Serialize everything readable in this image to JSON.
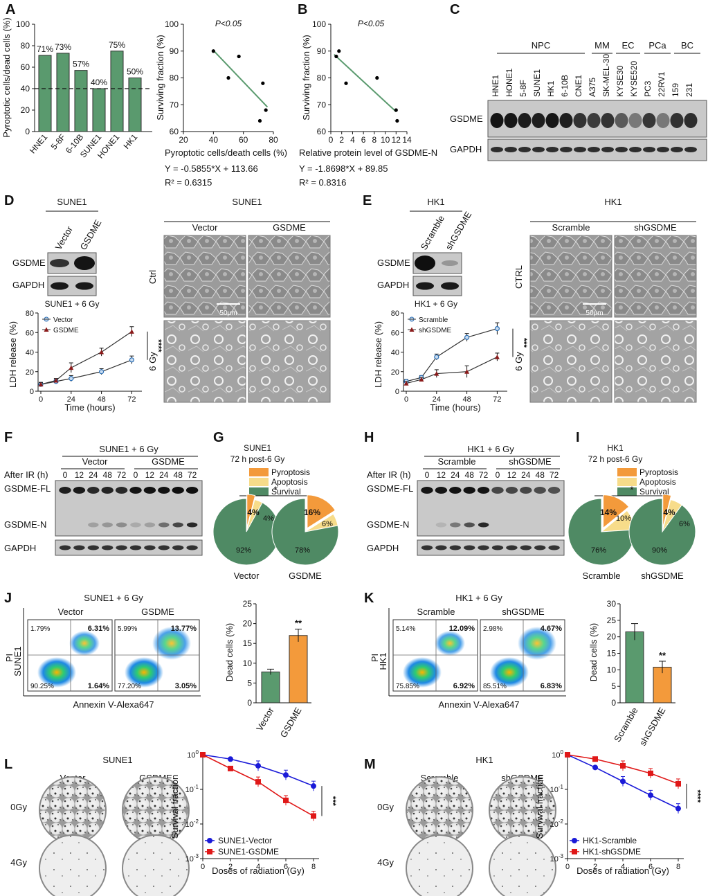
{
  "panels": {
    "A": {
      "letter": "A",
      "bar_ylabel": "Pyroptotic cells/dead cells (%)",
      "bar_cats": [
        "HNE1",
        "5-8F",
        "6-10B",
        "SUNE1",
        "HONE1",
        "HK1"
      ],
      "bar_vals": [
        71,
        73,
        57,
        40,
        75,
        50
      ],
      "bar_labels": [
        "71%",
        "73%",
        "57%",
        "40%",
        "75%",
        "50%"
      ],
      "bar_ticks": [
        "0",
        "20",
        "40",
        "60",
        "80",
        "100"
      ],
      "sc_ylabel": "Surviving fraction (%)",
      "sc_xlabel": "Pyroptotic cells/death cells (%)",
      "sc_p": "P<0.05",
      "sc_eq": "Y = -0.5855*X + 113.66",
      "sc_r2": "R² = 0.6315",
      "sc_xticks": [
        "20",
        "40",
        "60",
        "80"
      ],
      "sc_yticks": [
        "60",
        "70",
        "80",
        "90",
        "100"
      ]
    },
    "B": {
      "letter": "B",
      "ylabel": "Surviving fraction (%)",
      "xlabel": "Relative protein level of GSDME-N",
      "p": "P<0.05",
      "eq": "Y = -1.8698*X + 89.85",
      "r2": "R² = 0.8316",
      "xticks": [
        "0",
        "2",
        "4",
        "6",
        "8",
        "10",
        "12",
        "14"
      ],
      "yticks": [
        "60",
        "70",
        "80",
        "90",
        "100"
      ]
    },
    "C": {
      "letter": "C",
      "groups": [
        "NPC",
        "MM",
        "EC",
        "PCa",
        "BC"
      ],
      "lanes": [
        "HNE1",
        "HONE1",
        "5-8F",
        "SUNE1",
        "HK1",
        "6-10B",
        "CNE1",
        "A375",
        "SK-MEL-30",
        "KYSE30",
        "KYSE520",
        "PC3",
        "22RV1",
        "159",
        "231"
      ],
      "blot1": "GSDME",
      "blot2": "GAPDH"
    },
    "D": {
      "letter": "D",
      "cell": "SUNE1",
      "lanes": [
        "Vector",
        "GSDME"
      ],
      "blot1": "GSDME",
      "blot2": "GAPDH",
      "chart_title": "SUNE1 + 6 Gy",
      "legend1": "Vector",
      "legend2": "GSDME",
      "ylabel": "LDH release (%)",
      "xlabel": "Time (hours)",
      "sig": "****",
      "xticks": [
        "0",
        "24",
        "48",
        "72"
      ],
      "yticks": [
        "0",
        "20",
        "40",
        "60",
        "80"
      ],
      "micro_title": "SUNE1",
      "micro_cols": [
        "Vector",
        "GSDME"
      ],
      "micro_rows": [
        "Ctrl",
        "6 Gy"
      ],
      "scale": "50μm"
    },
    "E": {
      "letter": "E",
      "cell": "HK1",
      "lanes": [
        "Scramble",
        "shGSDME"
      ],
      "blot1": "GSDME",
      "blot2": "GAPDH",
      "chart_title": "HK1 + 6 Gy",
      "legend1": "Scramble",
      "legend2": "shGSDME",
      "ylabel": "LDH release (%)",
      "xlabel": "Time (hours)",
      "sig": "***",
      "xticks": [
        "0",
        "24",
        "48",
        "72"
      ],
      "yticks": [
        "0",
        "20",
        "40",
        "60",
        "80"
      ],
      "micro_title": "HK1",
      "micro_cols": [
        "Scramble",
        "shGSDME"
      ],
      "micro_rows": [
        "CTRL",
        "6 Gy"
      ],
      "scale": "50μm"
    },
    "F": {
      "letter": "F",
      "title": "SUNE1 + 6 Gy",
      "groups": [
        "Vector",
        "GSDME"
      ],
      "after": "After IR (h)",
      "times": [
        "0",
        "12",
        "24",
        "48",
        "72",
        "0",
        "12",
        "24",
        "48",
        "72"
      ],
      "rows": [
        "GSDME-FL",
        "GSDME-N",
        "GAPDH"
      ]
    },
    "G": {
      "letter": "G",
      "title1": "SUNE1",
      "title2": "72 h post-6 Gy",
      "legend": [
        "Pyroptosis",
        "Apoptosis",
        "Survival"
      ],
      "sig": "*",
      "pies": [
        {
          "name": "Vector",
          "labels": [
            "4%",
            "4%",
            "92%"
          ]
        },
        {
          "name": "GSDME",
          "labels": [
            "16%",
            "6%",
            "78%"
          ]
        }
      ]
    },
    "H": {
      "letter": "H",
      "title": "HK1 + 6 Gy",
      "groups": [
        "Scramble",
        "shGSDME"
      ],
      "after": "After IR (h)",
      "times": [
        "0",
        "12",
        "24",
        "48",
        "72",
        "0",
        "12",
        "24",
        "48",
        "72"
      ],
      "rows": [
        "GSDME-FL",
        "GSDME-N",
        "GAPDH"
      ]
    },
    "I": {
      "letter": "I",
      "title1": "HK1",
      "title2": "72 h post-6 Gy",
      "legend": [
        "Pyroptosis",
        "Apoptosis",
        "Survival"
      ],
      "sig": "*",
      "pies": [
        {
          "name": "Scramble",
          "labels": [
            "14%",
            "10%",
            "76%"
          ]
        },
        {
          "name": "shGSDME",
          "labels": [
            "4%",
            "6%",
            "90%"
          ]
        }
      ]
    },
    "J": {
      "letter": "J",
      "title": "SUNE1 + 6 Gy",
      "cols": [
        "Vector",
        "GSDME"
      ],
      "ylab": "PI",
      "cell": "SUNE1",
      "xlab": "Annexin V-Alexa647",
      "q1": [
        [
          "1.79%",
          "6.31%",
          "90.25%",
          "1.64%"
        ],
        [
          "5.99%",
          "13.77%",
          "77.20%",
          "3.05%"
        ]
      ],
      "bar_ylabel": "Dead cells (%)",
      "bar_cats": [
        "Vector",
        "GSDME"
      ],
      "sig": "**",
      "yticks": [
        "0",
        "5",
        "10",
        "15",
        "20",
        "25"
      ]
    },
    "K": {
      "letter": "K",
      "title": "HK1 + 6 Gy",
      "cols": [
        "Scramble",
        "shGSDME"
      ],
      "ylab": "PI",
      "cell": "HK1",
      "xlab": "Annexin V-Alexa647",
      "q1": [
        [
          "5.14%",
          "12.09%",
          "75.85%",
          "6.92%"
        ],
        [
          "2.98%",
          "4.67%",
          "85.51%",
          "6.83%"
        ]
      ],
      "bar_ylabel": "Dead cells (%)",
      "bar_cats": [
        "Scramble",
        "shGSDME"
      ],
      "sig": "**",
      "yticks": [
        "0",
        "5",
        "10",
        "15",
        "20",
        "25",
        "30"
      ]
    },
    "L": {
      "letter": "L",
      "cell": "SUNE1",
      "cols": [
        "Vector",
        "GSDME"
      ],
      "rows": [
        "0Gy",
        "4Gy"
      ],
      "ylabel": "Survival fraction",
      "xlabel": "Doses of radiation (Gy)",
      "legend": [
        "SUNE1-Vector",
        "SUNE1-GSDME"
      ],
      "sig": "***",
      "xticks": [
        "0",
        "2",
        "4",
        "6",
        "8"
      ]
    },
    "M": {
      "letter": "M",
      "cell": "HK1",
      "cols": [
        "Scramble",
        "shGSDME"
      ],
      "rows": [
        "0Gy",
        "4Gy"
      ],
      "ylabel": "Survival fraction",
      "xlabel": "Doses of radiation (Gy)",
      "legend": [
        "HK1-Scramble",
        "HK1-shGSDME"
      ],
      "sig": "****",
      "xticks": [
        "0",
        "2",
        "4",
        "6",
        "8"
      ]
    }
  },
  "chart_data": [
    {
      "type": "bar",
      "panel": "A",
      "categories": [
        "HNE1",
        "5-8F",
        "6-10B",
        "SUNE1",
        "HONE1",
        "HK1"
      ],
      "values": [
        71,
        73,
        57,
        40,
        75,
        50
      ],
      "ylabel": "Pyroptotic cells/dead cells (%)",
      "ylim": [
        0,
        100
      ],
      "reference_line": 40
    },
    {
      "type": "scatter",
      "panel": "A",
      "x": [
        40,
        50,
        57,
        71,
        73,
        75
      ],
      "y": [
        90,
        80,
        88,
        64,
        78,
        68
      ],
      "xlabel": "Pyroptotic cells/death cells (%)",
      "ylabel": "Surviving fraction (%)",
      "xlim": [
        20,
        80
      ],
      "ylim": [
        60,
        100
      ],
      "fit": {
        "slope": -0.5855,
        "intercept": 113.66
      }
    },
    {
      "type": "scatter",
      "panel": "B",
      "x": [
        1,
        1.5,
        2.8,
        8.5,
        12,
        12.2
      ],
      "y": [
        88,
        90,
        78,
        80,
        68,
        64
      ],
      "xlabel": "Relative protein level of GSDME-N",
      "ylabel": "Surviving fraction (%)",
      "xlim": [
        0,
        14
      ],
      "ylim": [
        60,
        100
      ],
      "fit": {
        "slope": -1.8698,
        "intercept": 89.85
      }
    },
    {
      "type": "line",
      "panel": "D",
      "x": [
        0,
        12,
        24,
        48,
        72
      ],
      "series": [
        {
          "name": "Vector",
          "values": [
            7,
            10,
            13,
            20,
            32
          ],
          "err": [
            2,
            2,
            3,
            3,
            4
          ]
        },
        {
          "name": "GSDME",
          "values": [
            7,
            11,
            24,
            40,
            61
          ],
          "err": [
            2,
            2,
            5,
            4,
            5
          ]
        }
      ],
      "xlabel": "Time (hours)",
      "ylabel": "LDH release (%)",
      "ylim": [
        0,
        80
      ]
    },
    {
      "type": "line",
      "panel": "E",
      "x": [
        0,
        12,
        24,
        48,
        72
      ],
      "series": [
        {
          "name": "Scramble",
          "values": [
            10,
            14,
            35,
            55,
            64
          ],
          "err": [
            2,
            2,
            3,
            4,
            6
          ]
        },
        {
          "name": "shGSDME",
          "values": [
            8,
            12,
            18,
            20,
            35
          ],
          "err": [
            2,
            2,
            4,
            6,
            4
          ]
        }
      ],
      "xlabel": "Time (hours)",
      "ylabel": "LDH release (%)",
      "ylim": [
        0,
        80
      ]
    },
    {
      "type": "pie",
      "panel": "G",
      "pies": [
        {
          "name": "Vector",
          "labels": [
            "Pyroptosis",
            "Apoptosis",
            "Survival"
          ],
          "values": [
            4,
            4,
            92
          ]
        },
        {
          "name": "GSDME",
          "labels": [
            "Pyroptosis",
            "Apoptosis",
            "Survival"
          ],
          "values": [
            16,
            6,
            78
          ]
        }
      ]
    },
    {
      "type": "pie",
      "panel": "I",
      "pies": [
        {
          "name": "Scramble",
          "labels": [
            "Pyroptosis",
            "Apoptosis",
            "Survival"
          ],
          "values": [
            14,
            10,
            76
          ]
        },
        {
          "name": "shGSDME",
          "labels": [
            "Pyroptosis",
            "Apoptosis",
            "Survival"
          ],
          "values": [
            4,
            6,
            90
          ]
        }
      ]
    },
    {
      "type": "bar",
      "panel": "J",
      "categories": [
        "Vector",
        "GSDME"
      ],
      "values": [
        7.8,
        17
      ],
      "err": [
        0.7,
        1.6
      ],
      "ylabel": "Dead cells (%)",
      "ylim": [
        0,
        25
      ]
    },
    {
      "type": "bar",
      "panel": "K",
      "categories": [
        "Scramble",
        "shGSDME"
      ],
      "values": [
        21.5,
        10.8
      ],
      "err": [
        2.5,
        1.8
      ],
      "ylabel": "Dead cells (%)",
      "ylim": [
        0,
        30
      ]
    },
    {
      "type": "line",
      "panel": "L",
      "log_y": true,
      "x": [
        0,
        2,
        4,
        6,
        8
      ],
      "series": [
        {
          "name": "SUNE1-Vector",
          "values": [
            1.0,
            0.75,
            0.48,
            0.26,
            0.125
          ]
        },
        {
          "name": "SUNE1-GSDME",
          "values": [
            1.0,
            0.4,
            0.165,
            0.048,
            0.017
          ]
        }
      ],
      "xlabel": "Doses of radiation (Gy)",
      "ylabel": "Survival fraction",
      "ylim": [
        0.001,
        1
      ]
    },
    {
      "type": "line",
      "panel": "M",
      "log_y": true,
      "x": [
        0,
        2,
        4,
        6,
        8
      ],
      "series": [
        {
          "name": "HK1-Scramble",
          "values": [
            1.0,
            0.43,
            0.17,
            0.068,
            0.028
          ]
        },
        {
          "name": "HK1-shGSDME",
          "values": [
            1.0,
            0.75,
            0.48,
            0.29,
            0.145
          ]
        }
      ],
      "xlabel": "Doses of radiation (Gy)",
      "ylabel": "Survival fraction",
      "ylim": [
        0.001,
        1
      ]
    }
  ]
}
